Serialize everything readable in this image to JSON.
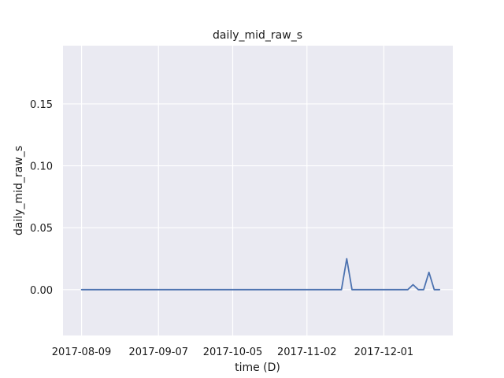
{
  "chart_data": {
    "type": "line",
    "title": "daily_mid_raw_s",
    "xlabel": "time (D)",
    "ylabel": "daily_mid_raw_s",
    "x_tick_labels": [
      "2017-08-09",
      "2017-09-07",
      "2017-10-05",
      "2017-11-02",
      "2017-12-01"
    ],
    "y_tick_labels": [
      "0.00",
      "0.05",
      "0.10",
      "0.15"
    ],
    "xlim": [
      "2017-08-02",
      "2017-12-27"
    ],
    "ylim": [
      -0.037,
      0.197
    ],
    "grid": true,
    "colors": {
      "background": "#EAEAF2",
      "grid": "#FFFFFF",
      "line": "#4C72B0"
    },
    "series": [
      {
        "x": [
          "2017-08-09",
          "2017-11-15",
          "2017-11-17",
          "2017-11-19",
          "2017-12-10",
          "2017-12-12",
          "2017-12-14",
          "2017-12-16",
          "2017-12-18",
          "2017-12-20",
          "2017-12-22"
        ],
        "values": [
          0,
          0,
          0.025,
          0,
          0,
          0.004,
          0,
          0,
          0.014,
          0,
          0
        ]
      }
    ]
  }
}
